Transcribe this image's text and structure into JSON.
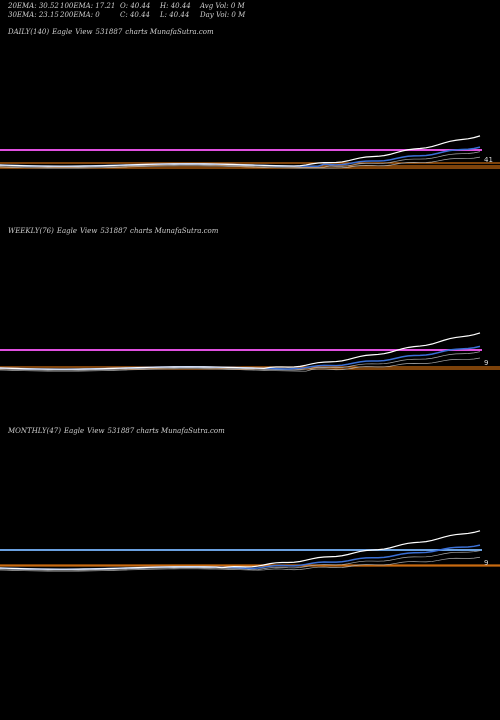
{
  "header": {
    "row1": {
      "ema20": "20EMA: 30.52",
      "ema100": "100EMA: 17.21",
      "open": "O: 40.44",
      "high": "H: 40.44",
      "avgvol": "Avg Vol: 0  M"
    },
    "row2": {
      "ema30": "30EMA: 23.15",
      "ema200": "200EMA: 0",
      "close": "C: 40.44",
      "low": "L: 40.44",
      "dayvol": "Day Vol: 0  M"
    }
  },
  "panels": [
    {
      "period": "DAILY(140)",
      "name": "Eagle",
      "view": "View",
      "code": "531887",
      "site": "charts MunafaSutra.com"
    },
    {
      "period": "WEEKLY(76)",
      "name": "Eagle",
      "view": "View",
      "code": "531887",
      "site": "charts MunafaSutra.com"
    },
    {
      "period": "MONTHLY(47)",
      "name": "Eagle",
      "view": "View",
      "code": "531887 charts MunafaSutra.com"
    }
  ],
  "colors": {
    "price": "#ffffff",
    "ema_blue": "#3a6fd6",
    "ema_gray": "#aaaaaa",
    "magenta": "#e050e0",
    "orange": "#c86a10",
    "steelblue": "#6aa0e0"
  },
  "chart_data": [
    {
      "type": "line",
      "title": "DAILY(140)",
      "series": [],
      "price_shape": "flat then rising",
      "last_label": "41"
    },
    {
      "type": "line",
      "title": "WEEKLY(76)",
      "series": [],
      "price_shape": "flat then rising",
      "last_label": "9"
    },
    {
      "type": "line",
      "title": "MONTHLY(47)",
      "series": [],
      "price_shape": "flat then rising",
      "last_label": "9"
    }
  ]
}
